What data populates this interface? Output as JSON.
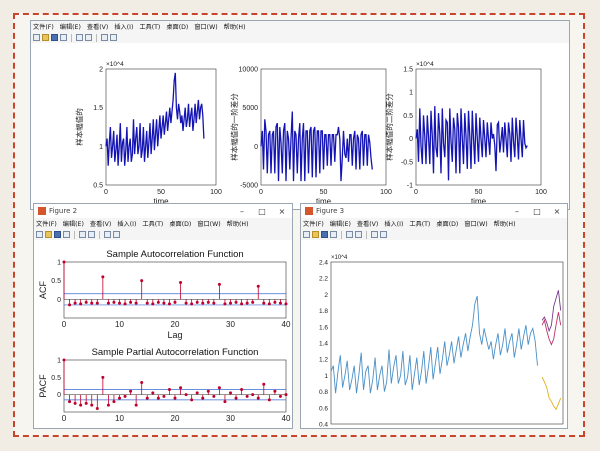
{
  "colors": {
    "frame": "#c8452c",
    "line_blue": "#1414b4",
    "acf_red": "#c0002a",
    "forecast_line": "#4a90c8"
  },
  "menu": [
    "文件(F)",
    "编辑(E)",
    "查看(V)",
    "插入(I)",
    "工具(T)",
    "桌面(D)",
    "窗口(W)",
    "帮助(H)"
  ],
  "toolbar_icons": [
    "new-file-icon",
    "open-folder-icon",
    "save-icon",
    "print-icon",
    "separator",
    "zoom-icon",
    "datacursor-icon",
    "separator",
    "pointer-icon",
    "panel-icon"
  ],
  "fig1": {
    "plots": [
      {
        "ylabel": "样本幅值的",
        "xlabel": "time",
        "exponent": "×10^4",
        "yticks": [
          "2",
          "1.5",
          "1",
          "0.5"
        ],
        "xticks": [
          "0",
          "50",
          "100"
        ]
      },
      {
        "ylabel": "样本幅值的一阶差分",
        "xlabel": "time",
        "exponent": "",
        "yticks": [
          "10000",
          "5000",
          "0",
          "-5000"
        ],
        "xticks": [
          "0",
          "50",
          "100"
        ]
      },
      {
        "ylabel": "样本幅值的二阶差分",
        "xlabel": "time",
        "exponent": "×10^4",
        "yticks": [
          "1.5",
          "1",
          "0.5",
          "0",
          "-0.5",
          "-1"
        ],
        "xticks": [
          "0",
          "50",
          "100"
        ]
      }
    ]
  },
  "fig2": {
    "title": "Figure 2",
    "acf": {
      "title": "Sample Autocorrelation Function",
      "ylabel": "ACF",
      "xlabel": "Lag",
      "yticks": [
        "1",
        "0.5",
        "0"
      ],
      "xticks": [
        "0",
        "10",
        "20",
        "30",
        "40"
      ]
    },
    "pacf": {
      "title": "Sample Partial Autocorrelation Function",
      "ylabel": "PACF",
      "xticks": [
        "0",
        "10",
        "20",
        "30",
        "40"
      ],
      "yticks": [
        "1",
        "0.5",
        "0"
      ]
    }
  },
  "fig3": {
    "title": "Figure 3",
    "exponent": "×10^4",
    "yticks": [
      "2.4",
      "2.2",
      "2",
      "1.8",
      "1.6",
      "1.4",
      "1.2",
      "1",
      "0.8",
      "0.6",
      "0.4"
    ]
  },
  "chart_data": [
    {
      "type": "line",
      "series": [
        {
          "values": [
            1.0,
            1.1,
            0.75,
            1.05,
            1.25,
            0.85,
            1.0,
            1.2,
            0.8,
            0.95,
            1.15,
            0.75,
            1.0,
            1.3,
            0.8,
            1.05,
            1.1,
            0.75,
            0.95,
            1.25,
            0.8,
            1.0,
            1.1,
            0.8,
            0.9,
            1.35,
            0.9,
            1.1,
            1.25,
            0.9,
            1.0,
            1.3,
            0.85,
            0.95,
            1.25,
            0.8,
            1.0,
            1.2,
            0.85,
            1.05,
            1.3,
            0.9,
            1.1,
            1.35,
            0.95,
            1.15,
            1.35,
            1.0,
            1.2,
            1.4,
            1.1,
            1.25,
            1.4,
            1.15,
            1.3,
            1.45,
            1.2,
            1.35,
            1.5,
            1.3,
            1.45,
            1.6,
            1.85,
            1.95,
            1.5,
            1.35,
            1.55,
            1.45,
            1.3,
            1.4,
            1.2,
            1.35,
            1.5,
            1.25,
            1.35,
            1.55,
            1.25,
            1.4,
            1.5,
            1.2,
            1.35,
            1.55,
            1.3,
            1.45,
            1.6,
            1.35,
            1.5,
            1.55,
            1.4,
            1.1
          ]
        }
      ],
      "xlim": [
        0,
        100
      ],
      "ylim": [
        0.5,
        2.0
      ]
    },
    {
      "type": "line",
      "series": [
        {
          "values": [
            0,
            2000,
            -3000,
            3500,
            2000,
            -3500,
            1500,
            2000,
            -3500,
            1500,
            2000,
            -3500,
            2500,
            3000,
            -4500,
            2500,
            500,
            -3500,
            2000,
            3000,
            -4500,
            2000,
            1000,
            -3000,
            1000,
            4500,
            -4500,
            2000,
            1500,
            -3500,
            1000,
            3000,
            -4500,
            1000,
            3000,
            -4500,
            2000,
            2000,
            -3500,
            2000,
            2500,
            -4000,
            2000,
            2500,
            -4000,
            2000,
            2000,
            -3500,
            2000,
            2000,
            -3000,
            1500,
            1500,
            -2500,
            1500,
            1500,
            -2500,
            1500,
            1500,
            -2000,
            1500,
            1500,
            2500,
            1000,
            -4500,
            -1500,
            2000,
            -1000,
            -1500,
            1000,
            -2000,
            1500,
            1500,
            -2500,
            1000,
            2000,
            -3000,
            1500,
            1000,
            -3000,
            1500,
            2000,
            -2500,
            1500,
            1500,
            -2500,
            1500,
            500,
            -1500,
            -3000
          ]
        }
      ],
      "xlim": [
        0,
        100
      ],
      "ylim": [
        -5000,
        10000
      ]
    },
    {
      "type": "line",
      "series": [
        {
          "values": [
            0,
            0.2,
            -0.5,
            0.65,
            -0.15,
            -0.55,
            0.5,
            0.05,
            -0.55,
            0.5,
            0.05,
            -0.55,
            0.6,
            0.05,
            -0.75,
            0.7,
            -0.2,
            -0.4,
            0.55,
            0.1,
            -0.75,
            0.65,
            -0.1,
            -0.4,
            0.4,
            0.35,
            -0.9,
            0.65,
            -0.05,
            -0.5,
            0.45,
            0.2,
            -0.75,
            0.55,
            0.25,
            -0.75,
            0.65,
            0,
            -0.55,
            0.55,
            0.05,
            -0.65,
            0.6,
            0.05,
            -0.65,
            0.6,
            0,
            -0.55,
            0.55,
            0,
            -0.5,
            0.45,
            0,
            -0.4,
            0.4,
            0,
            -0.4,
            0.35,
            0,
            -0.35,
            0.35,
            0,
            0.1,
            -0.15,
            -0.7,
            0.3,
            0.35,
            -0.3,
            -0.05,
            0.25,
            -0.3,
            0.35,
            0,
            -0.4,
            0.35,
            0.1,
            -0.5,
            0.45,
            -0.05,
            -0.4,
            0.45,
            0.05,
            -0.45,
            0.4,
            0,
            -0.4,
            0.4,
            -0.1,
            -0.2,
            -0.15
          ]
        }
      ],
      "xlim": [
        0,
        100
      ],
      "ylim": [
        -1.0,
        1.5
      ]
    },
    {
      "type": "bar",
      "title": "Sample Autocorrelation Function",
      "xlabel": "Lag",
      "ylabel": "ACF",
      "x": [
        0,
        1,
        2,
        3,
        4,
        5,
        6,
        7,
        8,
        9,
        10,
        11,
        12,
        13,
        14,
        15,
        16,
        17,
        18,
        19,
        20,
        21,
        22,
        23,
        24,
        25,
        26,
        27,
        28,
        29,
        30,
        31,
        32,
        33,
        34,
        35,
        36,
        37,
        38,
        39,
        40
      ],
      "values": [
        1,
        -0.15,
        -0.1,
        -0.12,
        -0.08,
        -0.1,
        -0.1,
        0.6,
        -0.1,
        -0.08,
        -0.1,
        -0.12,
        -0.08,
        -0.1,
        0.5,
        -0.1,
        -0.12,
        -0.08,
        -0.1,
        -0.12,
        -0.08,
        0.45,
        -0.1,
        -0.12,
        -0.08,
        -0.1,
        -0.08,
        -0.1,
        0.4,
        -0.12,
        -0.1,
        -0.08,
        -0.12,
        -0.1,
        -0.08,
        0.35,
        -0.1,
        -0.12,
        -0.08,
        -0.1,
        -0.12
      ],
      "xlim": [
        0,
        40
      ],
      "ylim": [
        -0.5,
        1
      ]
    },
    {
      "type": "bar",
      "title": "Sample Partial Autocorrelation Function",
      "ylabel": "PACF",
      "x": [
        0,
        1,
        2,
        3,
        4,
        5,
        6,
        7,
        8,
        9,
        10,
        11,
        12,
        13,
        14,
        15,
        16,
        17,
        18,
        19,
        20,
        21,
        22,
        23,
        24,
        25,
        26,
        27,
        28,
        29,
        30,
        31,
        32,
        33,
        34,
        35,
        36,
        37,
        38,
        39,
        40
      ],
      "values": [
        1,
        -0.2,
        -0.25,
        -0.3,
        -0.25,
        -0.3,
        -0.4,
        0.5,
        -0.3,
        -0.2,
        -0.1,
        -0.05,
        0.1,
        -0.3,
        0.35,
        -0.1,
        0.05,
        -0.1,
        -0.05,
        0.15,
        -0.1,
        0.2,
        0.0,
        -0.15,
        0.05,
        -0.1,
        0.1,
        -0.05,
        0.2,
        -0.2,
        0.05,
        -0.1,
        0.15,
        -0.05,
        0.0,
        -0.1,
        0.3,
        -0.15,
        0.1,
        -0.05,
        0.0
      ],
      "xlim": [
        0,
        40
      ],
      "ylim": [
        -0.5,
        1
      ]
    },
    {
      "type": "line",
      "ylim": [
        0.4,
        2.4
      ],
      "series": [
        {
          "values": [
            1.05,
            1.12,
            0.78,
            1.05,
            1.25,
            0.85,
            1.0,
            1.18,
            0.82,
            0.95,
            1.12,
            0.78,
            1.0,
            1.28,
            0.82,
            1.05,
            1.12,
            0.78,
            0.95,
            1.22,
            0.82,
            1.0,
            1.12,
            0.8,
            0.92,
            1.32,
            0.9,
            1.1,
            1.25,
            0.9,
            1.0,
            1.3,
            0.88,
            0.98,
            1.25,
            0.82,
            1.02,
            1.22,
            0.88,
            1.05,
            1.3,
            0.9,
            1.1,
            1.35,
            0.95,
            1.15,
            1.35,
            1.02,
            1.2,
            1.42,
            1.12,
            1.25,
            1.42,
            1.15,
            1.32,
            1.48,
            1.22,
            1.38,
            1.52,
            1.3,
            1.48,
            1.62,
            1.88,
            1.98,
            1.52,
            1.38,
            1.58,
            1.45,
            1.32,
            1.42,
            1.2,
            1.38,
            1.52,
            1.25,
            1.38,
            1.58,
            1.28,
            1.42,
            1.52,
            1.22,
            1.38,
            1.58,
            1.32,
            1.48,
            1.62,
            1.38,
            1.52,
            1.58,
            1.42,
            1.12
          ]
        },
        {
          "values": [
            1.68,
            1.72,
            1.65,
            1.55,
            1.62,
            1.85,
            1.95,
            2.05,
            1.8
          ]
        },
        {
          "values": [
            1.62,
            1.68,
            1.55,
            1.45,
            1.38,
            1.45,
            1.62,
            1.78,
            1.62
          ]
        },
        {
          "values": [
            0.98,
            0.92,
            0.85,
            0.72,
            0.68,
            0.62,
            0.58,
            0.65,
            0.72
          ]
        }
      ]
    }
  ]
}
